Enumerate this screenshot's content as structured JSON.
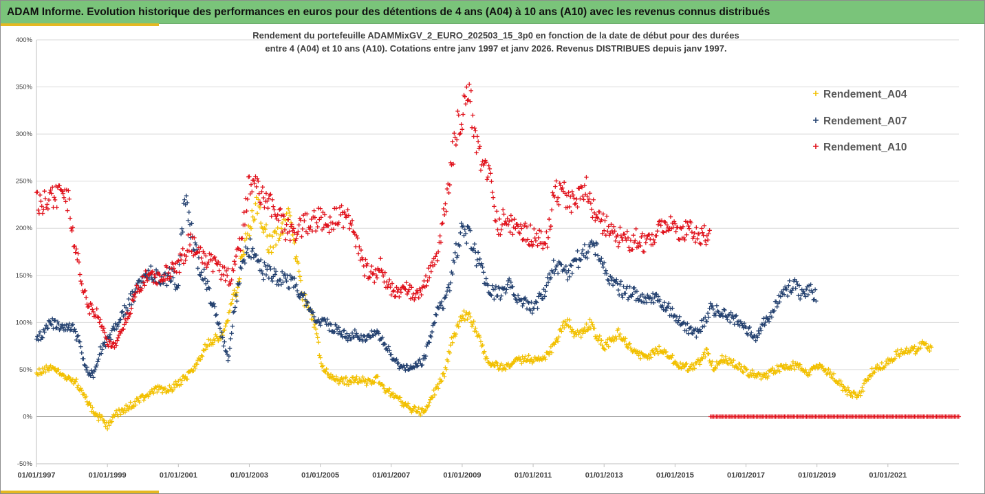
{
  "page": {
    "title": "ADAM Informe. Evolution historique des performances en euros pour des détentions de 4 ans (A04) à 10 ans (A10) avec les revenus connus distribués"
  },
  "colors": {
    "title_bar": "#7ac47a",
    "accent": "#e5b821",
    "A04": "#f2c000",
    "A07": "#23406f",
    "A10": "#e0101a",
    "grid": "#d9d9d9",
    "text": "#404040"
  },
  "chart_data": {
    "type": "scatter",
    "marker": "+",
    "title_lines": [
      "Rendement du portefeuille ADAMMixGV_2_EURO_202503_15_3p0  en fonction de la date de début pour des durées",
      "entre 4 (A04) et 10 ans (A10). Cotations entre janv 1997 et janv 2026. Revenus DISTRIBUES depuis janv 1997."
    ],
    "x_range": [
      1997.0,
      2023.0
    ],
    "x_ticks": [
      {
        "value": 1997,
        "label": "01/01/1997"
      },
      {
        "value": 1999,
        "label": "01/01/1999"
      },
      {
        "value": 2001,
        "label": "01/01/2001"
      },
      {
        "value": 2003,
        "label": "01/01/2003"
      },
      {
        "value": 2005,
        "label": "01/01/2005"
      },
      {
        "value": 2007,
        "label": "01/01/2007"
      },
      {
        "value": 2009,
        "label": "01/01/2009"
      },
      {
        "value": 2011,
        "label": "01/01/2011"
      },
      {
        "value": 2013,
        "label": "01/01/2013"
      },
      {
        "value": 2015,
        "label": "01/01/2015"
      },
      {
        "value": 2017,
        "label": "01/01/2017"
      },
      {
        "value": 2019,
        "label": "01/01/2019"
      },
      {
        "value": 2021,
        "label": "01/01/2021"
      }
    ],
    "y_range": [
      -50,
      400
    ],
    "y_ticks": [
      {
        "value": -50,
        "label": "-50%"
      },
      {
        "value": 0,
        "label": "0%"
      },
      {
        "value": 50,
        "label": "50%"
      },
      {
        "value": 100,
        "label": "100%"
      },
      {
        "value": 150,
        "label": "150%"
      },
      {
        "value": 200,
        "label": "200%"
      },
      {
        "value": 250,
        "label": "250%"
      },
      {
        "value": 300,
        "label": "300%"
      },
      {
        "value": 350,
        "label": "350%"
      },
      {
        "value": 400,
        "label": "400%"
      }
    ],
    "legend_position": "right",
    "zero_series": {
      "name": "Rendement_A10",
      "x_from": 2016.0,
      "x_to": 2023.0,
      "value": 0,
      "step": 0.0833
    },
    "series": [
      {
        "name": "Rendement_A04",
        "color_key": "A04",
        "x_end": 2022.25,
        "anchors": [
          [
            1997.0,
            48
          ],
          [
            1997.4,
            52
          ],
          [
            1997.8,
            42
          ],
          [
            1998.1,
            38
          ],
          [
            1998.3,
            25
          ],
          [
            1998.6,
            5
          ],
          [
            1998.9,
            -5
          ],
          [
            1999.0,
            -10
          ],
          [
            1999.2,
            2
          ],
          [
            1999.5,
            8
          ],
          [
            1999.8,
            15
          ],
          [
            2000.1,
            22
          ],
          [
            2000.4,
            30
          ],
          [
            2000.7,
            28
          ],
          [
            2001.0,
            35
          ],
          [
            2001.3,
            45
          ],
          [
            2001.6,
            60
          ],
          [
            2001.8,
            78
          ],
          [
            2002.0,
            82
          ],
          [
            2002.3,
            90
          ],
          [
            2002.6,
            130
          ],
          [
            2002.8,
            170
          ],
          [
            2003.0,
            200
          ],
          [
            2003.2,
            230
          ],
          [
            2003.4,
            200
          ],
          [
            2003.6,
            180
          ],
          [
            2003.9,
            200
          ],
          [
            2004.1,
            220
          ],
          [
            2004.3,
            170
          ],
          [
            2004.5,
            130
          ],
          [
            2004.7,
            110
          ],
          [
            2004.9,
            90
          ],
          [
            2005.0,
            60
          ],
          [
            2005.2,
            45
          ],
          [
            2005.5,
            38
          ],
          [
            2005.8,
            38
          ],
          [
            2006.1,
            40
          ],
          [
            2006.4,
            35
          ],
          [
            2006.6,
            42
          ],
          [
            2006.8,
            30
          ],
          [
            2007.0,
            25
          ],
          [
            2007.3,
            15
          ],
          [
            2007.6,
            8
          ],
          [
            2007.8,
            5
          ],
          [
            2008.0,
            10
          ],
          [
            2008.2,
            25
          ],
          [
            2008.5,
            45
          ],
          [
            2008.7,
            80
          ],
          [
            2008.9,
            100
          ],
          [
            2009.1,
            110
          ],
          [
            2009.3,
            100
          ],
          [
            2009.5,
            80
          ],
          [
            2009.7,
            60
          ],
          [
            2009.9,
            55
          ],
          [
            2010.2,
            52
          ],
          [
            2010.5,
            58
          ],
          [
            2010.8,
            62
          ],
          [
            2011.1,
            60
          ],
          [
            2011.4,
            65
          ],
          [
            2011.6,
            75
          ],
          [
            2011.8,
            95
          ],
          [
            2012.0,
            100
          ],
          [
            2012.2,
            85
          ],
          [
            2012.4,
            90
          ],
          [
            2012.6,
            100
          ],
          [
            2012.8,
            85
          ],
          [
            2013.0,
            75
          ],
          [
            2013.2,
            80
          ],
          [
            2013.4,
            90
          ],
          [
            2013.6,
            80
          ],
          [
            2013.8,
            72
          ],
          [
            2014.0,
            65
          ],
          [
            2014.3,
            65
          ],
          [
            2014.6,
            72
          ],
          [
            2014.9,
            62
          ],
          [
            2015.1,
            55
          ],
          [
            2015.4,
            52
          ],
          [
            2015.7,
            58
          ],
          [
            2015.9,
            70
          ],
          [
            2016.1,
            50
          ],
          [
            2016.3,
            62
          ],
          [
            2016.6,
            58
          ],
          [
            2016.9,
            50
          ],
          [
            2017.2,
            45
          ],
          [
            2017.5,
            42
          ],
          [
            2017.8,
            50
          ],
          [
            2018.0,
            52
          ],
          [
            2018.3,
            55
          ],
          [
            2018.6,
            50
          ],
          [
            2018.8,
            45
          ],
          [
            2019.0,
            55
          ],
          [
            2019.3,
            48
          ],
          [
            2019.6,
            38
          ],
          [
            2019.8,
            28
          ],
          [
            2020.0,
            25
          ],
          [
            2020.2,
            22
          ],
          [
            2020.4,
            40
          ],
          [
            2020.6,
            50
          ],
          [
            2020.9,
            55
          ],
          [
            2021.2,
            65
          ],
          [
            2021.5,
            72
          ],
          [
            2021.8,
            70
          ],
          [
            2022.0,
            78
          ],
          [
            2022.25,
            72
          ]
        ]
      },
      {
        "name": "Rendement_A07",
        "color_key": "A07",
        "x_end": 2019.0,
        "anchors": [
          [
            1997.0,
            80
          ],
          [
            1997.3,
            95
          ],
          [
            1997.5,
            100
          ],
          [
            1997.7,
            92
          ],
          [
            1998.0,
            95
          ],
          [
            1998.2,
            80
          ],
          [
            1998.4,
            50
          ],
          [
            1998.6,
            45
          ],
          [
            1998.8,
            70
          ],
          [
            1999.0,
            80
          ],
          [
            1999.3,
            100
          ],
          [
            1999.6,
            120
          ],
          [
            1999.9,
            140
          ],
          [
            2000.2,
            155
          ],
          [
            2000.5,
            145
          ],
          [
            2000.8,
            150
          ],
          [
            2001.0,
            140
          ],
          [
            2001.1,
            200
          ],
          [
            2001.2,
            230
          ],
          [
            2001.4,
            190
          ],
          [
            2001.6,
            160
          ],
          [
            2001.8,
            140
          ],
          [
            2002.0,
            115
          ],
          [
            2002.2,
            90
          ],
          [
            2002.4,
            60
          ],
          [
            2002.6,
            120
          ],
          [
            2002.8,
            160
          ],
          [
            2003.0,
            180
          ],
          [
            2003.2,
            175
          ],
          [
            2003.4,
            155
          ],
          [
            2003.7,
            150
          ],
          [
            2004.0,
            145
          ],
          [
            2004.3,
            140
          ],
          [
            2004.5,
            130
          ],
          [
            2004.7,
            115
          ],
          [
            2004.9,
            105
          ],
          [
            2005.2,
            98
          ],
          [
            2005.5,
            92
          ],
          [
            2005.8,
            85
          ],
          [
            2006.0,
            88
          ],
          [
            2006.2,
            82
          ],
          [
            2006.5,
            90
          ],
          [
            2006.8,
            80
          ],
          [
            2007.0,
            65
          ],
          [
            2007.3,
            50
          ],
          [
            2007.6,
            55
          ],
          [
            2007.9,
            58
          ],
          [
            2008.1,
            85
          ],
          [
            2008.3,
            110
          ],
          [
            2008.6,
            130
          ],
          [
            2008.8,
            170
          ],
          [
            2009.0,
            200
          ],
          [
            2009.2,
            190
          ],
          [
            2009.4,
            170
          ],
          [
            2009.6,
            150
          ],
          [
            2009.8,
            135
          ],
          [
            2010.0,
            130
          ],
          [
            2010.3,
            140
          ],
          [
            2010.5,
            130
          ],
          [
            2010.8,
            120
          ],
          [
            2011.0,
            115
          ],
          [
            2011.3,
            130
          ],
          [
            2011.6,
            160
          ],
          [
            2011.9,
            150
          ],
          [
            2012.2,
            165
          ],
          [
            2012.5,
            175
          ],
          [
            2012.8,
            180
          ],
          [
            2013.0,
            160
          ],
          [
            2013.2,
            145
          ],
          [
            2013.5,
            135
          ],
          [
            2013.8,
            130
          ],
          [
            2014.1,
            125
          ],
          [
            2014.4,
            128
          ],
          [
            2014.7,
            120
          ],
          [
            2015.0,
            105
          ],
          [
            2015.3,
            95
          ],
          [
            2015.6,
            88
          ],
          [
            2015.8,
            100
          ],
          [
            2016.0,
            115
          ],
          [
            2016.3,
            110
          ],
          [
            2016.6,
            105
          ],
          [
            2016.9,
            98
          ],
          [
            2017.1,
            90
          ],
          [
            2017.3,
            85
          ],
          [
            2017.5,
            100
          ],
          [
            2017.7,
            110
          ],
          [
            2018.0,
            130
          ],
          [
            2018.3,
            140
          ],
          [
            2018.6,
            130
          ],
          [
            2018.8,
            135
          ],
          [
            2019.0,
            128
          ]
        ]
      },
      {
        "name": "Rendement_A10",
        "color_key": "A10",
        "x_end": 2016.0,
        "anchors": [
          [
            1997.0,
            225
          ],
          [
            1997.3,
            232
          ],
          [
            1997.6,
            235
          ],
          [
            1997.9,
            228
          ],
          [
            1998.1,
            180
          ],
          [
            1998.3,
            140
          ],
          [
            1998.5,
            115
          ],
          [
            1998.7,
            110
          ],
          [
            1998.9,
            90
          ],
          [
            1999.0,
            80
          ],
          [
            1999.2,
            75
          ],
          [
            1999.5,
            100
          ],
          [
            1999.8,
            130
          ],
          [
            2000.1,
            150
          ],
          [
            2000.4,
            145
          ],
          [
            2000.7,
            155
          ],
          [
            2001.0,
            160
          ],
          [
            2001.3,
            185
          ],
          [
            2001.6,
            175
          ],
          [
            2001.9,
            165
          ],
          [
            2002.2,
            155
          ],
          [
            2002.5,
            145
          ],
          [
            2002.8,
            190
          ],
          [
            2003.0,
            250
          ],
          [
            2003.2,
            240
          ],
          [
            2003.4,
            230
          ],
          [
            2003.7,
            220
          ],
          [
            2004.0,
            200
          ],
          [
            2004.3,
            195
          ],
          [
            2004.6,
            205
          ],
          [
            2004.9,
            210
          ],
          [
            2005.2,
            205
          ],
          [
            2005.5,
            215
          ],
          [
            2005.8,
            210
          ],
          [
            2006.0,
            190
          ],
          [
            2006.2,
            160
          ],
          [
            2006.5,
            150
          ],
          [
            2006.7,
            160
          ],
          [
            2006.9,
            140
          ],
          [
            2007.1,
            130
          ],
          [
            2007.4,
            135
          ],
          [
            2007.7,
            130
          ],
          [
            2008.0,
            145
          ],
          [
            2008.2,
            160
          ],
          [
            2008.4,
            190
          ],
          [
            2008.6,
            240
          ],
          [
            2008.8,
            300
          ],
          [
            2009.0,
            320
          ],
          [
            2009.2,
            340
          ],
          [
            2009.4,
            290
          ],
          [
            2009.6,
            260
          ],
          [
            2009.8,
            250
          ],
          [
            2010.0,
            200
          ],
          [
            2010.2,
            210
          ],
          [
            2010.5,
            200
          ],
          [
            2010.8,
            195
          ],
          [
            2011.1,
            190
          ],
          [
            2011.4,
            185
          ],
          [
            2011.6,
            240
          ],
          [
            2011.9,
            235
          ],
          [
            2012.2,
            225
          ],
          [
            2012.5,
            240
          ],
          [
            2012.8,
            210
          ],
          [
            2013.0,
            205
          ],
          [
            2013.3,
            195
          ],
          [
            2013.6,
            185
          ],
          [
            2013.9,
            190
          ],
          [
            2014.2,
            180
          ],
          [
            2014.5,
            195
          ],
          [
            2014.8,
            210
          ],
          [
            2015.1,
            195
          ],
          [
            2015.4,
            200
          ],
          [
            2015.7,
            190
          ],
          [
            2016.0,
            195
          ]
        ]
      }
    ]
  }
}
